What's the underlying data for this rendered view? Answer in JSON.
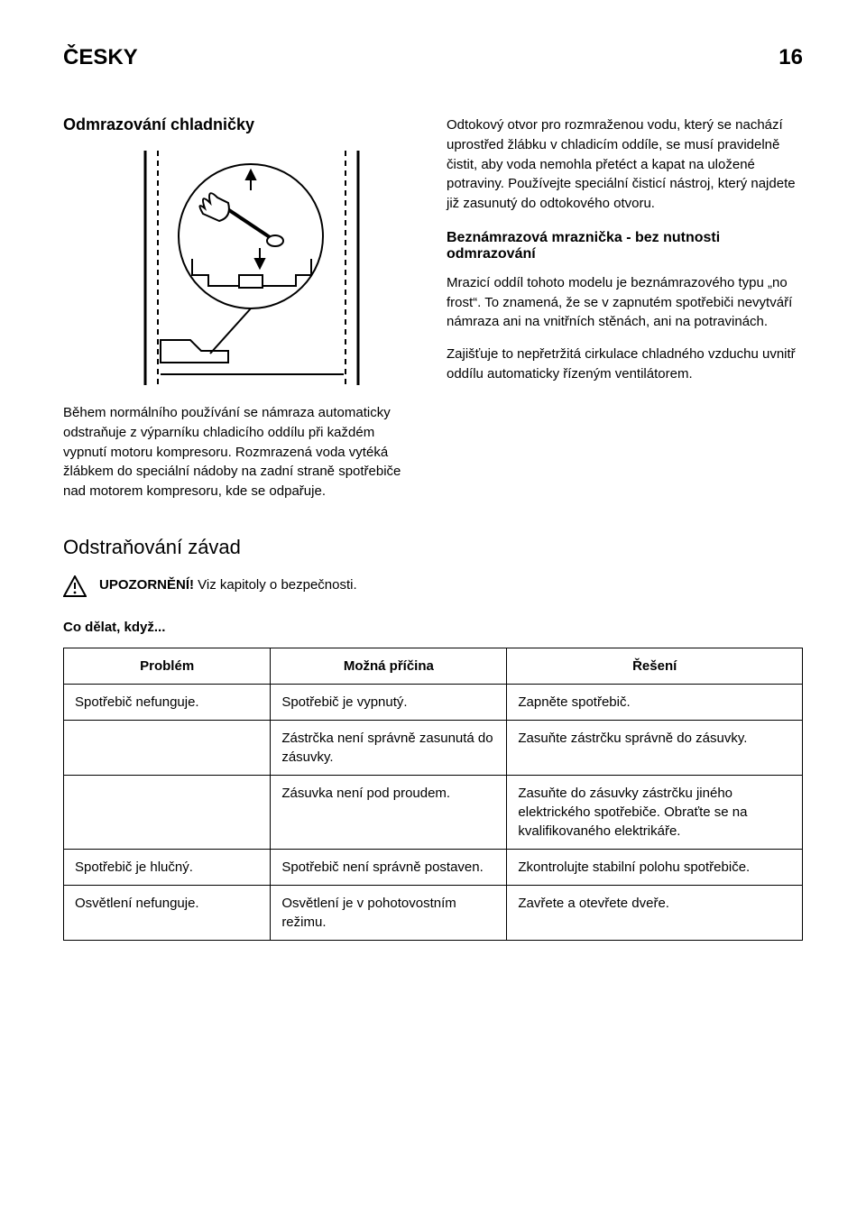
{
  "header": {
    "language": "ČESKY",
    "page_number": "16"
  },
  "left": {
    "section_title": "Odmrazování chladničky",
    "para1": "Během normálního používání se námraza automaticky odstraňuje z výparníku chladicího oddílu při každém vypnutí motoru kompresoru. Rozmrazená voda vytéká žlábkem do speciální nádoby na zadní straně spotřebiče nad motorem kompresoru, kde se odpařuje.",
    "troubleshoot_heading": "Odstraňování závad",
    "warning_bold": "UPOZORNĚNÍ!",
    "warning_rest": " Viz kapitoly o bezpečnosti.",
    "whatif": "Co dělat, když..."
  },
  "right": {
    "para1": "Odtokový otvor pro rozmraženou vodu, který se nachází uprostřed žlábku v chladicím oddíle, se musí pravidelně čistit, aby voda nemohla přetéct a kapat na uložené potraviny. Používejte speciální čisticí nástroj, který najdete již zasunutý do odtokového otvoru.",
    "sub_title": "Beznámrazová mraznička - bez nutnosti odmrazování",
    "para2": "Mrazicí oddíl tohoto modelu je beznámrazového typu „no frost“. To znamená, že se v zapnutém spotřebiči nevytváří námraza ani na vnitřních stěnách, ani na potravinách.",
    "para3": "Zajišťuje to nepřetržitá cirkulace chladného vzduchu uvnitř oddílu automaticky řízeným ventilátorem."
  },
  "table": {
    "headers": [
      "Problém",
      "Možná příčina",
      "Řešení"
    ],
    "col_widths": [
      "28%",
      "32%",
      "40%"
    ],
    "rows": [
      [
        "Spotřebič nefunguje.",
        "Spotřebič je vypnutý.",
        "Zapněte spotřebič."
      ],
      [
        "",
        "Zástrčka není správně zasunutá do zásuvky.",
        "Zasuňte zástrčku správně do zásuvky."
      ],
      [
        "",
        "Zásuvka není pod proudem.",
        "Zasuňte do zásuvky zástrčku jiného elektrického spotřebiče. Obraťte se na kvalifikovaného elektrikáře."
      ],
      [
        "Spotřebič je hlučný.",
        "Spotřebič není správně postaven.",
        "Zkontrolujte stabilní polohu spotřebiče."
      ],
      [
        "Osvětlení nefunguje.",
        "Osvětlení je v pohotovostním režimu.",
        "Zavřete a otevřete dveře."
      ]
    ]
  },
  "colors": {
    "text": "#000000",
    "background": "#ffffff",
    "border": "#000000"
  }
}
